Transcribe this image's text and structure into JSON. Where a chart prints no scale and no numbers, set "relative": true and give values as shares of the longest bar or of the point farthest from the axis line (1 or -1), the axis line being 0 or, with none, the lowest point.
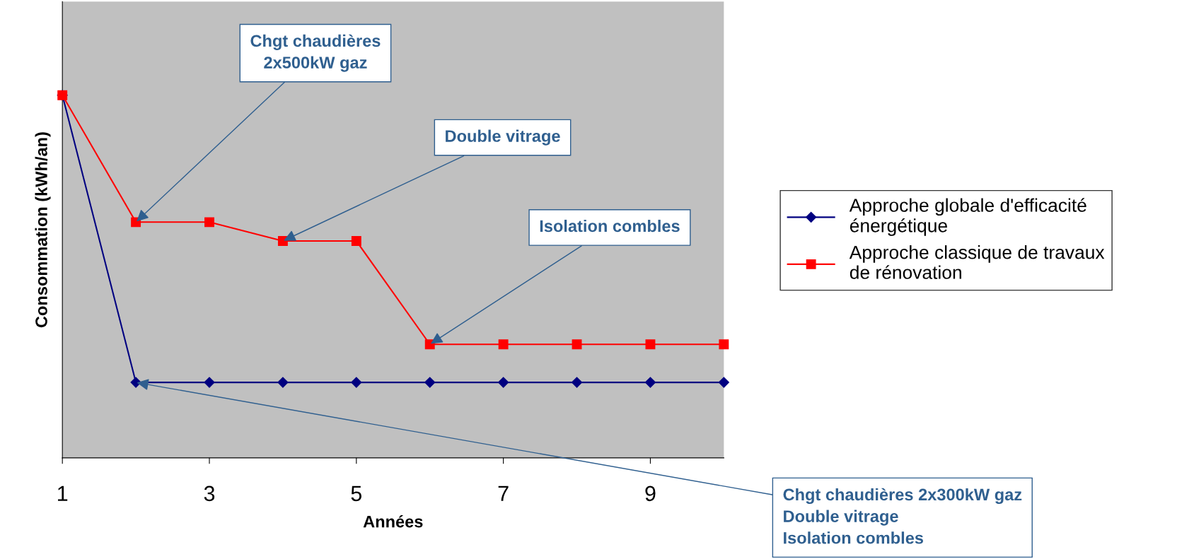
{
  "chart_data": {
    "type": "line",
    "relative": true,
    "xlabel": "Années",
    "ylabel": "Consommation (kWh/an)",
    "x": [
      1,
      2,
      3,
      4,
      5,
      6,
      7,
      8,
      9,
      10
    ],
    "xlim": [
      1,
      10
    ],
    "xticks": [
      1,
      3,
      5,
      7,
      9
    ],
    "series": [
      {
        "name": "Approche globale d'efficacité énergétique",
        "color": "#000080",
        "marker": "diamond",
        "values": [
          1,
          0.208,
          0.208,
          0.208,
          0.208,
          0.208,
          0.208,
          0.208,
          0.208,
          0.208
        ]
      },
      {
        "name": "Approche classique de travaux de rénovation",
        "color": "#ff0000",
        "marker": "square",
        "values": [
          1,
          0.65,
          0.65,
          0.598,
          0.598,
          0.313,
          0.313,
          0.313,
          0.313,
          0.313
        ]
      }
    ],
    "annotations": [
      {
        "text": "Chgt chaudières\n2x500kW gaz",
        "x": 2,
        "y": 0.65
      },
      {
        "text": "Double vitrage",
        "x": 4,
        "y": 0.598
      },
      {
        "text": "Isolation combles",
        "x": 6,
        "y": 0.313
      },
      {
        "text": "Chgt chaudières 2x300kW gaz\nDouble vitrage\nIsolation combles",
        "x": 2,
        "y": 0.208
      }
    ],
    "legend": "right",
    "grid": false
  }
}
